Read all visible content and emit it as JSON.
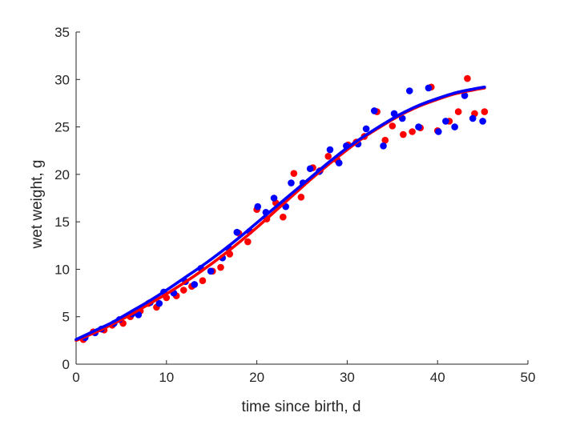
{
  "chart_data": {
    "type": "scatter",
    "xlabel": "time since birth, d",
    "ylabel": "wet weight, g",
    "xlim": [
      0,
      50
    ],
    "ylim": [
      0,
      35
    ],
    "xticks": [
      0,
      10,
      20,
      30,
      40,
      50
    ],
    "yticks": [
      0,
      5,
      10,
      15,
      20,
      25,
      30,
      35
    ],
    "xtick_labels": [
      "0",
      "10",
      "20",
      "30",
      "40",
      "50"
    ],
    "ytick_labels": [
      "0",
      "5",
      "10",
      "15",
      "20",
      "25",
      "30",
      "35"
    ],
    "grid": false,
    "legend": "none",
    "series": [
      {
        "kind": "points",
        "color": "#ff0000",
        "x": [
          0.8,
          1.9,
          3.1,
          4.0,
          5.2,
          6.0,
          7.1,
          8.0,
          8.9,
          10.0,
          11.1,
          11.9,
          12.8,
          14.0,
          15.1,
          16.0,
          17.0,
          18.0,
          19.0,
          20.0,
          21.1,
          22.1,
          22.9,
          24.1,
          24.9,
          26.2,
          27.0,
          27.9,
          28.9,
          30.1,
          31.0,
          31.9,
          33.3,
          34.2,
          35.0,
          36.2,
          37.2,
          38.1,
          39.3,
          40.0,
          41.3,
          42.3,
          43.3,
          44.1,
          45.2
        ],
        "y": [
          2.6,
          3.4,
          3.6,
          4.1,
          4.3,
          5.0,
          5.6,
          6.4,
          6.0,
          7.0,
          7.2,
          7.8,
          8.2,
          8.8,
          9.8,
          10.2,
          11.6,
          13.8,
          12.9,
          16.3,
          15.3,
          17.0,
          15.5,
          20.1,
          17.6,
          20.7,
          20.4,
          21.9,
          21.5,
          23.1,
          23.4,
          24.0,
          26.6,
          23.6,
          25.1,
          24.2,
          24.5,
          24.9,
          29.2,
          24.6,
          25.6,
          26.6,
          30.1,
          26.4,
          26.6
        ]
      },
      {
        "kind": "points",
        "color": "#0000ff",
        "x": [
          1.0,
          2.1,
          2.8,
          4.2,
          4.8,
          6.2,
          6.9,
          8.2,
          9.2,
          9.7,
          10.8,
          12.1,
          13.1,
          13.8,
          14.9,
          16.2,
          16.9,
          17.8,
          19.2,
          20.1,
          21.0,
          21.9,
          23.2,
          23.8,
          25.1,
          25.9,
          26.9,
          28.1,
          29.1,
          29.9,
          31.2,
          32.1,
          33.0,
          34.0,
          35.2,
          36.1,
          36.9,
          37.9,
          39.0,
          40.1,
          40.9,
          41.9,
          43.0,
          43.9,
          45.0
        ],
        "y": [
          2.8,
          3.3,
          3.7,
          4.3,
          4.7,
          5.3,
          5.2,
          6.5,
          6.4,
          7.6,
          7.5,
          8.7,
          8.4,
          10.1,
          9.8,
          11.2,
          12.2,
          13.9,
          14.0,
          16.6,
          16.0,
          17.5,
          16.6,
          19.1,
          19.1,
          20.6,
          20.3,
          22.6,
          21.2,
          23.0,
          23.2,
          24.8,
          26.7,
          23.0,
          26.4,
          25.9,
          28.8,
          25.0,
          29.1,
          24.5,
          25.6,
          25.0,
          28.3,
          25.9,
          25.6
        ]
      },
      {
        "kind": "curve",
        "color": "#ff0000",
        "x": [
          0,
          2,
          4,
          6,
          8,
          10,
          12,
          14,
          16,
          18,
          20,
          22,
          24,
          26,
          28,
          30,
          32,
          34,
          36,
          38,
          40,
          42,
          44,
          45.2
        ],
        "y": [
          2.5,
          3.3,
          4.2,
          5.2,
          6.3,
          7.4,
          8.6,
          9.9,
          11.3,
          12.8,
          14.4,
          16.1,
          17.8,
          19.5,
          21.1,
          22.6,
          24.0,
          25.2,
          26.3,
          27.2,
          27.9,
          28.5,
          28.9,
          29.1
        ]
      },
      {
        "kind": "curve",
        "color": "#0000ff",
        "x": [
          0,
          2,
          4,
          6,
          8,
          10,
          12,
          14,
          16,
          18,
          20,
          22,
          24,
          26,
          28,
          30,
          32,
          34,
          36,
          38,
          40,
          42,
          44,
          45.2
        ],
        "y": [
          2.6,
          3.5,
          4.4,
          5.5,
          6.6,
          7.8,
          9.1,
          10.4,
          11.8,
          13.3,
          14.9,
          16.5,
          18.1,
          19.7,
          21.3,
          22.8,
          24.1,
          25.3,
          26.4,
          27.3,
          28.0,
          28.6,
          29.0,
          29.2
        ]
      }
    ]
  }
}
